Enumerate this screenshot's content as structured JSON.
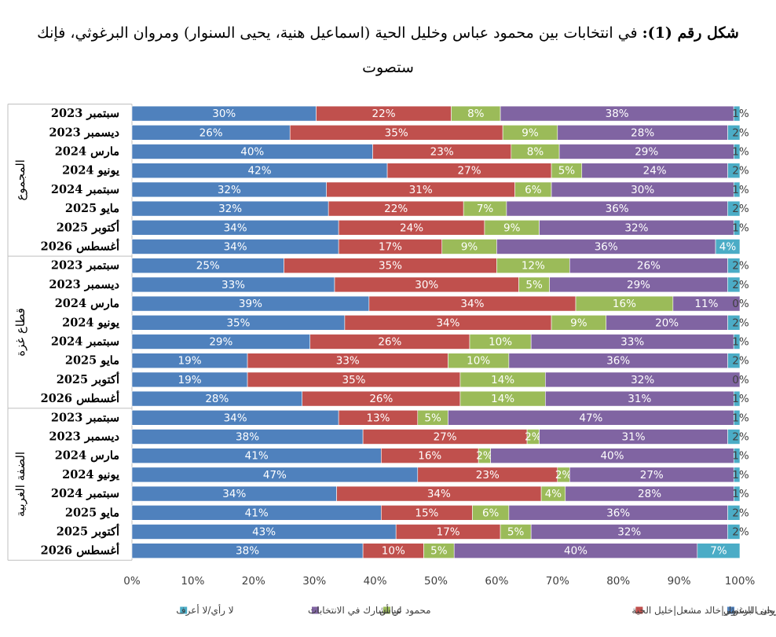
{
  "title": {
    "prefix": "شكل رقم (1):",
    "text": "في انتخابات بين محمود عباس وخليل الحية (اسماعيل هنية، يحيى السنوار) ومروان البرغوثي، فإنك ستصوت"
  },
  "chart_data": {
    "type": "bar",
    "orientation": "horizontal",
    "stacked": "percent",
    "xlim": [
      0,
      100
    ],
    "x_ticks": [
      "0%",
      "10%",
      "20%",
      "30%",
      "40%",
      "50%",
      "60%",
      "70%",
      "80%",
      "90%",
      "100%"
    ],
    "legend_position": "bottom",
    "colors": [
      "#4f81bd",
      "#c0504d",
      "#9bbb59",
      "#8064a2",
      "#4bacc6"
    ],
    "series": [
      {
        "name": "مروان البرغوثي"
      },
      {
        "name": "إسماعيل هنية|يحيى السنوار|خالد مشعل|خليل الحية"
      },
      {
        "name": "محمود عباس"
      },
      {
        "name": "لن أشارك في الانتخابات"
      },
      {
        "name": "لا رأي/لا أعرف"
      }
    ],
    "groups": [
      {
        "name": "المجموع",
        "rows": [
          {
            "label": "سبتمبر 2023",
            "values": [
              30,
              22,
              8,
              38,
              1
            ]
          },
          {
            "label": "ديسمبر 2023",
            "values": [
              26,
              35,
              9,
              28,
              2
            ]
          },
          {
            "label": "مارس 2024",
            "values": [
              40,
              23,
              8,
              29,
              1
            ]
          },
          {
            "label": "يونيو 2024",
            "values": [
              42,
              27,
              5,
              24,
              2
            ]
          },
          {
            "label": "سبتمبر 2024",
            "values": [
              32,
              31,
              6,
              30,
              1
            ]
          },
          {
            "label": "مايو 2025",
            "values": [
              32,
              22,
              7,
              36,
              2
            ]
          },
          {
            "label": "أكتوبر 2025",
            "values": [
              34,
              24,
              9,
              32,
              1
            ]
          },
          {
            "label": "أغسطس 2026",
            "values": [
              34,
              17,
              9,
              36,
              4
            ]
          }
        ]
      },
      {
        "name": "قطاع غزة",
        "rows": [
          {
            "label": "سبتمبر 2023",
            "values": [
              25,
              35,
              12,
              26,
              2
            ]
          },
          {
            "label": "ديسمبر 2023",
            "values": [
              33,
              30,
              5,
              29,
              2
            ]
          },
          {
            "label": "مارس 2024",
            "values": [
              39,
              34,
              16,
              11,
              0
            ]
          },
          {
            "label": "يونيو 2024",
            "values": [
              35,
              34,
              9,
              20,
              2
            ]
          },
          {
            "label": "سبتمبر 2024",
            "values": [
              29,
              26,
              10,
              33,
              1
            ]
          },
          {
            "label": "مايو 2025",
            "values": [
              19,
              33,
              10,
              36,
              2
            ]
          },
          {
            "label": "أكتوبر 2025",
            "values": [
              19,
              35,
              14,
              32,
              0
            ]
          },
          {
            "label": "أغسطس 2026",
            "values": [
              28,
              26,
              14,
              31,
              1
            ]
          }
        ]
      },
      {
        "name": "الضفة الغربية",
        "rows": [
          {
            "label": "سبتمبر 2023",
            "values": [
              34,
              13,
              5,
              47,
              1
            ]
          },
          {
            "label": "ديسمبر 2023",
            "values": [
              38,
              27,
              2,
              31,
              2
            ]
          },
          {
            "label": "مارس 2024",
            "values": [
              41,
              16,
              2,
              40,
              1
            ]
          },
          {
            "label": "يونيو 2024",
            "values": [
              47,
              23,
              2,
              27,
              1
            ]
          },
          {
            "label": "سبتمبر 2024",
            "values": [
              34,
              34,
              4,
              28,
              1
            ]
          },
          {
            "label": "مايو 2025",
            "values": [
              41,
              15,
              6,
              36,
              2
            ]
          },
          {
            "label": "أكتوبر 2025",
            "values": [
              43,
              17,
              5,
              32,
              2
            ]
          },
          {
            "label": "أغسطس 2026",
            "values": [
              38,
              10,
              5,
              40,
              7
            ]
          }
        ]
      }
    ]
  }
}
